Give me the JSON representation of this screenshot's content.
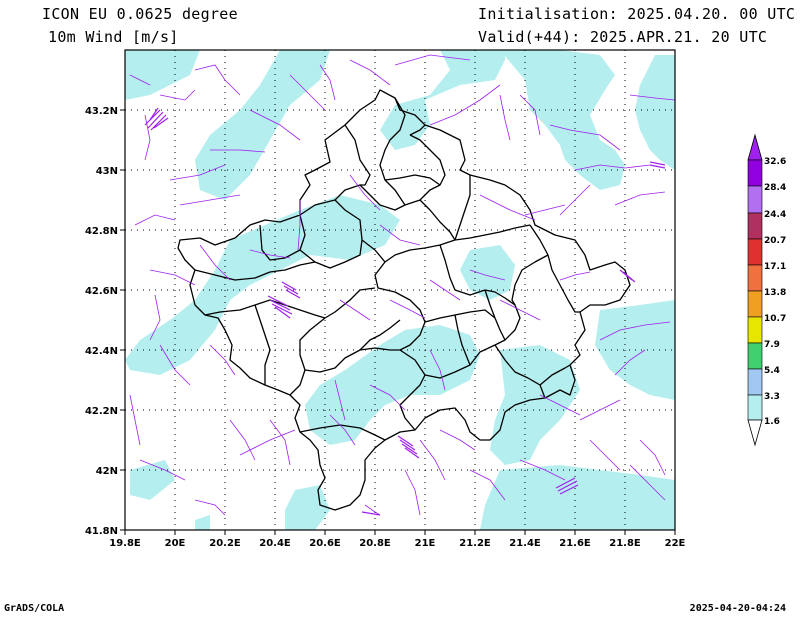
{
  "header": {
    "model": "ICON EU 0.0625 degree",
    "variable": "10m Wind [m/s]",
    "initialisation": "Initialisation: 2025.04.20. 00 UTC",
    "valid": "Valid(+44): 2025.APR.21. 20 UTC"
  },
  "map": {
    "x_axis_labels": [
      "19.8E",
      "20E",
      "20.2E",
      "20.4E",
      "20.6E",
      "20.8E",
      "21E",
      "21.2E",
      "21.4E",
      "21.6E",
      "21.8E",
      "22E"
    ],
    "y_axis_labels": [
      "43.2N",
      "43N",
      "42.8N",
      "42.6N",
      "42.4N",
      "42.2N",
      "42N",
      "41.8N"
    ],
    "lon_range": [
      19.8,
      22.0
    ],
    "lat_range": [
      41.8,
      43.4
    ],
    "grid": "dotted",
    "shading_color": "#b4eeee",
    "vector_color": "#a020f0",
    "border_color": "#000000"
  },
  "colorbar": {
    "levels": [
      "32.6",
      "28.4",
      "24.4",
      "20.7",
      "17.1",
      "13.8",
      "10.7",
      "7.9",
      "5.4",
      "3.3",
      "1.6"
    ],
    "colors": [
      "#a020f0",
      "#a020f0",
      "#c070f0",
      "#b03060",
      "#e03030",
      "#f07040",
      "#f0a020",
      "#e6e600",
      "#40e080",
      "#a0c8f0",
      "#b4eeee",
      "#ffffff"
    ]
  },
  "footer": {
    "left": "GrADS/COLA",
    "right": "2025-04-20-04:24"
  }
}
